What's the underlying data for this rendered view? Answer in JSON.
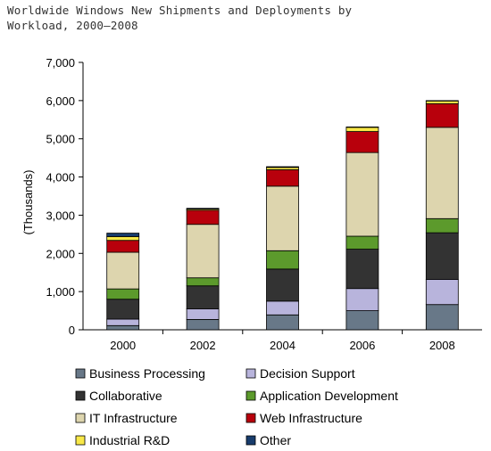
{
  "chart_data": {
    "type": "bar",
    "stacked": true,
    "title_lines": [
      "Worldwide Windows New Shipments and Deployments by",
      "Workload, 2000–2008"
    ],
    "xlabel": "",
    "ylabel": "(Thousands)",
    "categories": [
      "2000",
      "2002",
      "2004",
      "2006",
      "2008"
    ],
    "ylim": [
      0,
      7000
    ],
    "y_ticks": [
      0,
      1000,
      2000,
      3000,
      4000,
      5000,
      6000,
      7000
    ],
    "y_tick_labels": [
      "0",
      "1,000",
      "2,000",
      "3,000",
      "4,000",
      "5,000",
      "6,000",
      "7,000"
    ],
    "grid": false,
    "legend_position": "bottom",
    "series": [
      {
        "name": "Business Processing",
        "color": "#687888",
        "values": [
          110,
          270,
          390,
          500,
          660
        ]
      },
      {
        "name": "Decision Support",
        "color": "#b8b4dc",
        "values": [
          170,
          280,
          360,
          580,
          660
        ]
      },
      {
        "name": "Collaborative",
        "color": "#333333",
        "values": [
          520,
          600,
          840,
          1030,
          1220
        ]
      },
      {
        "name": "Application Development",
        "color": "#5c9a2c",
        "values": [
          270,
          210,
          480,
          340,
          370
        ]
      },
      {
        "name": "IT Infrastructure",
        "color": "#ddd5ae",
        "values": [
          960,
          1400,
          1690,
          2190,
          2390
        ]
      },
      {
        "name": "Web Infrastructure",
        "color": "#b8000c",
        "values": [
          310,
          370,
          430,
          550,
          620
        ]
      },
      {
        "name": "Industrial R&D",
        "color": "#f8e848",
        "values": [
          100,
          30,
          60,
          110,
          70
        ]
      },
      {
        "name": "Other",
        "color": "#183c6c",
        "values": [
          90,
          20,
          20,
          10,
          10
        ]
      }
    ]
  }
}
